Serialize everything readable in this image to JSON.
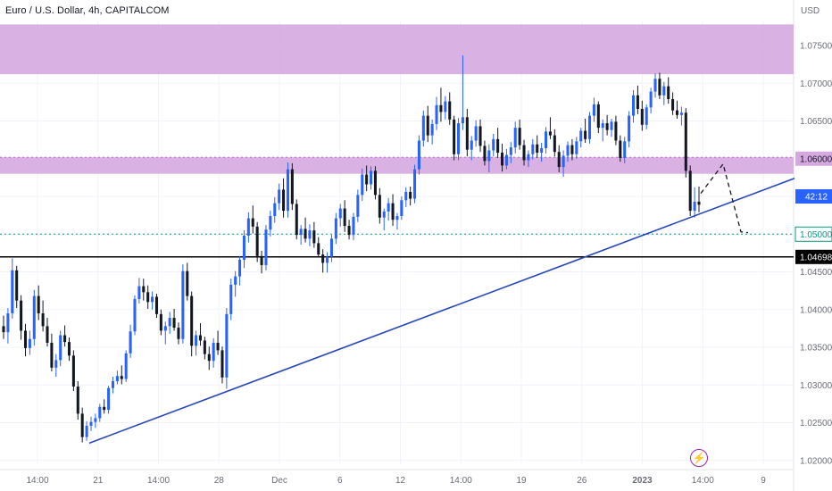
{
  "header": {
    "title": "Euro / U.S. Dollar, 4h, CAPITALCOM"
  },
  "currency_label": "USD",
  "countdown": "42:12",
  "icons": {
    "event": "lightning-icon"
  },
  "colors": {
    "up": "#2962ff",
    "down": "#131722",
    "zone": "#d6a8e0",
    "trendline": "#2946b8",
    "support": "#000000",
    "target": "#089981",
    "grid": "#f0f3fa"
  },
  "chart_data": {
    "type": "candlestick",
    "symbol": "Euro / U.S. Dollar",
    "interval": "4h",
    "source": "CAPITALCOM",
    "ylim": [
      1.0195,
      1.0782
    ],
    "y_ticks": [
      "1.07500",
      "1.07000",
      "1.06500",
      "1.06000",
      "1.05500",
      "1.05000",
      "1.04500",
      "1.04000",
      "1.03500",
      "1.03000",
      "1.02500",
      "1.02000"
    ],
    "x_ticks": [
      "14:00",
      "21",
      "14:00",
      "28",
      "Dec",
      "6",
      "12",
      "14:00",
      "19",
      "26",
      "2023",
      "14:00",
      "9"
    ],
    "zones": [
      {
        "from": 1.0712,
        "to": 1.0778
      },
      {
        "from": 1.058,
        "to": 1.0602
      }
    ],
    "price_labels": [
      {
        "value": 1.06,
        "text": "1.06000",
        "style": "zone"
      },
      {
        "value": 1.055,
        "text": "42:12",
        "style": "blue"
      },
      {
        "value": 1.05,
        "text": "1.05000",
        "style": "green"
      },
      {
        "value": 1.04698,
        "text": "1.04698",
        "style": "black"
      }
    ],
    "trendline": {
      "from": [
        100,
        1.0223
      ],
      "to": [
        890,
        1.0574
      ]
    },
    "projection": [
      [
        785,
        1.0554
      ],
      [
        810,
        1.0593
      ],
      [
        830,
        1.0503
      ],
      [
        838,
        1.0502
      ]
    ],
    "candles": [
      [
        1.0378,
        1.0392,
        1.0361,
        1.037
      ],
      [
        1.037,
        1.0402,
        1.0355,
        1.0395
      ],
      [
        1.0395,
        1.0468,
        1.0388,
        1.0452
      ],
      [
        1.0452,
        1.0458,
        1.0402,
        1.0412
      ],
      [
        1.0412,
        1.0419,
        1.036,
        1.0372
      ],
      [
        1.0372,
        1.0381,
        1.0338,
        1.0349
      ],
      [
        1.0349,
        1.0372,
        1.034,
        1.0361
      ],
      [
        1.0361,
        1.0426,
        1.0352,
        1.0418
      ],
      [
        1.0418,
        1.0432,
        1.0386,
        1.0395
      ],
      [
        1.0395,
        1.0412,
        1.0371,
        1.0378
      ],
      [
        1.0378,
        1.0389,
        1.0351,
        1.0356
      ],
      [
        1.0356,
        1.0368,
        1.0318,
        1.0323
      ],
      [
        1.0323,
        1.0341,
        1.0311,
        1.0333
      ],
      [
        1.0333,
        1.0372,
        1.0325,
        1.0366
      ],
      [
        1.0366,
        1.0379,
        1.0351,
        1.0357
      ],
      [
        1.0357,
        1.0363,
        1.0332,
        1.0339
      ],
      [
        1.0339,
        1.0346,
        1.0292,
        1.0298
      ],
      [
        1.0298,
        1.0305,
        1.0254,
        1.0262
      ],
      [
        1.0262,
        1.027,
        1.0224,
        1.0231
      ],
      [
        1.0231,
        1.0252,
        1.0226,
        1.0246
      ],
      [
        1.0246,
        1.0258,
        1.0239,
        1.0251
      ],
      [
        1.0251,
        1.0262,
        1.0243,
        1.0256
      ],
      [
        1.0256,
        1.0275,
        1.0251,
        1.0271
      ],
      [
        1.0271,
        1.0281,
        1.0262,
        1.0267
      ],
      [
        1.0267,
        1.0299,
        1.0262,
        1.0296
      ],
      [
        1.0296,
        1.0311,
        1.0289,
        1.0305
      ],
      [
        1.0305,
        1.0319,
        1.0301,
        1.0312
      ],
      [
        1.0312,
        1.0326,
        1.0301,
        1.0308
      ],
      [
        1.0308,
        1.0346,
        1.0304,
        1.0342
      ],
      [
        1.0342,
        1.038,
        1.0336,
        1.0371
      ],
      [
        1.0371,
        1.0419,
        1.0366,
        1.0414
      ],
      [
        1.0414,
        1.0442,
        1.0408,
        1.0431
      ],
      [
        1.0431,
        1.0441,
        1.0412,
        1.0423
      ],
      [
        1.0423,
        1.0432,
        1.0401,
        1.041
      ],
      [
        1.041,
        1.0424,
        1.04,
        1.0417
      ],
      [
        1.0417,
        1.0421,
        1.0389,
        1.0394
      ],
      [
        1.0394,
        1.04,
        1.0366,
        1.0372
      ],
      [
        1.0372,
        1.0384,
        1.0354,
        1.0378
      ],
      [
        1.0378,
        1.0397,
        1.0368,
        1.0389
      ],
      [
        1.0389,
        1.0401,
        1.0372,
        1.0376
      ],
      [
        1.0376,
        1.0383,
        1.0354,
        1.0361
      ],
      [
        1.0361,
        1.046,
        1.0355,
        1.0451
      ],
      [
        1.0451,
        1.0462,
        1.0412,
        1.0418
      ],
      [
        1.0418,
        1.0424,
        1.0338,
        1.0352
      ],
      [
        1.0352,
        1.0372,
        1.0339,
        1.0366
      ],
      [
        1.0366,
        1.0382,
        1.0352,
        1.0359
      ],
      [
        1.0359,
        1.0364,
        1.0334,
        1.0341
      ],
      [
        1.0341,
        1.0351,
        1.032,
        1.0332
      ],
      [
        1.0332,
        1.0362,
        1.0323,
        1.0356
      ],
      [
        1.0356,
        1.0372,
        1.034,
        1.0346
      ],
      [
        1.0346,
        1.0351,
        1.0302,
        1.031
      ],
      [
        1.031,
        1.0402,
        1.0295,
        1.0394
      ],
      [
        1.0394,
        1.0441,
        1.0386,
        1.0433
      ],
      [
        1.0433,
        1.0451,
        1.0417,
        1.0444
      ],
      [
        1.0444,
        1.0471,
        1.0432,
        1.0466
      ],
      [
        1.0466,
        1.0505,
        1.0455,
        1.0498
      ],
      [
        1.0498,
        1.0529,
        1.0489,
        1.0521
      ],
      [
        1.0521,
        1.0538,
        1.0501,
        1.051
      ],
      [
        1.051,
        1.0516,
        1.0463,
        1.0471
      ],
      [
        1.0471,
        1.0478,
        1.0448,
        1.0459
      ],
      [
        1.0459,
        1.0512,
        1.0452,
        1.0506
      ],
      [
        1.0506,
        1.0531,
        1.0497,
        1.0524
      ],
      [
        1.0524,
        1.0549,
        1.0515,
        1.0541
      ],
      [
        1.0541,
        1.0567,
        1.0532,
        1.0559
      ],
      [
        1.0559,
        1.0574,
        1.0522,
        1.0531
      ],
      [
        1.0531,
        1.0595,
        1.0522,
        1.0586
      ],
      [
        1.0586,
        1.0594,
        1.0532,
        1.054
      ],
      [
        1.054,
        1.0546,
        1.0493,
        1.0499
      ],
      [
        1.0499,
        1.0512,
        1.0486,
        1.0507
      ],
      [
        1.0507,
        1.0522,
        1.0489,
        1.0494
      ],
      [
        1.0494,
        1.0513,
        1.0484,
        1.0505
      ],
      [
        1.0505,
        1.0516,
        1.0482,
        1.0488
      ],
      [
        1.0488,
        1.0496,
        1.0469,
        1.0473
      ],
      [
        1.0473,
        1.048,
        1.0449,
        1.0462
      ],
      [
        1.0462,
        1.0476,
        1.0449,
        1.047
      ],
      [
        1.047,
        1.0499,
        1.0463,
        1.0494
      ],
      [
        1.0494,
        1.0528,
        1.0487,
        1.0521
      ],
      [
        1.0521,
        1.054,
        1.051,
        1.0534
      ],
      [
        1.0534,
        1.0545,
        1.0503,
        1.0511
      ],
      [
        1.0511,
        1.0519,
        1.0493,
        1.0499
      ],
      [
        1.0499,
        1.0528,
        1.0492,
        1.0523
      ],
      [
        1.0523,
        1.0559,
        1.0516,
        1.0552
      ],
      [
        1.0552,
        1.0587,
        1.0544,
        1.0579
      ],
      [
        1.0579,
        1.0591,
        1.0557,
        1.0566
      ],
      [
        1.0566,
        1.059,
        1.0559,
        1.0584
      ],
      [
        1.0584,
        1.059,
        1.0546,
        1.0552
      ],
      [
        1.0552,
        1.0561,
        1.0514,
        1.0522
      ],
      [
        1.0522,
        1.0534,
        1.0505,
        1.053
      ],
      [
        1.053,
        1.0548,
        1.0518,
        1.0541
      ],
      [
        1.0541,
        1.0553,
        1.0511,
        1.0519
      ],
      [
        1.0519,
        1.0528,
        1.0506,
        1.0524
      ],
      [
        1.0524,
        1.055,
        1.0519,
        1.0545
      ],
      [
        1.0545,
        1.0562,
        1.0536,
        1.0556
      ],
      [
        1.0556,
        1.0563,
        1.0538,
        1.0547
      ],
      [
        1.0547,
        1.0592,
        1.0541,
        1.0586
      ],
      [
        1.0586,
        1.0631,
        1.0579,
        1.0624
      ],
      [
        1.0624,
        1.0664,
        1.0616,
        1.0657
      ],
      [
        1.0657,
        1.067,
        1.0622,
        1.0631
      ],
      [
        1.0631,
        1.0652,
        1.0619,
        1.0646
      ],
      [
        1.0646,
        1.0682,
        1.0638,
        1.0671
      ],
      [
        1.0671,
        1.0694,
        1.0649,
        1.0662
      ],
      [
        1.0662,
        1.0683,
        1.0652,
        1.0676
      ],
      [
        1.0676,
        1.0688,
        1.0645,
        1.0652
      ],
      [
        1.0652,
        1.0657,
        1.0598,
        1.0606
      ],
      [
        1.0606,
        1.0654,
        1.0598,
        1.0647
      ],
      [
        1.0647,
        1.0737,
        1.0638,
        1.0655
      ],
      [
        1.0655,
        1.0666,
        1.0603,
        1.0612
      ],
      [
        1.0612,
        1.063,
        1.0598,
        1.0624
      ],
      [
        1.0624,
        1.0651,
        1.0616,
        1.0643
      ],
      [
        1.0643,
        1.0652,
        1.0609,
        1.0617
      ],
      [
        1.0617,
        1.0624,
        1.0591,
        1.0597
      ],
      [
        1.0597,
        1.0619,
        1.0582,
        1.0611
      ],
      [
        1.0611,
        1.0633,
        1.0603,
        1.0626
      ],
      [
        1.0626,
        1.0641,
        1.0601,
        1.0608
      ],
      [
        1.0608,
        1.062,
        1.0583,
        1.0591
      ],
      [
        1.0591,
        1.0613,
        1.0586,
        1.0605
      ],
      [
        1.0605,
        1.0622,
        1.0594,
        1.0615
      ],
      [
        1.0615,
        1.0649,
        1.0607,
        1.0641
      ],
      [
        1.0641,
        1.0652,
        1.0612,
        1.0618
      ],
      [
        1.0618,
        1.0625,
        1.0591,
        1.0598
      ],
      [
        1.0598,
        1.0611,
        1.0589,
        1.0606
      ],
      [
        1.0606,
        1.0626,
        1.0599,
        1.0619
      ],
      [
        1.0619,
        1.0631,
        1.0601,
        1.0608
      ],
      [
        1.0608,
        1.0621,
        1.0596,
        1.0614
      ],
      [
        1.0614,
        1.0642,
        1.0607,
        1.0636
      ],
      [
        1.0636,
        1.0655,
        1.0626,
        1.0631
      ],
      [
        1.0631,
        1.0639,
        1.0603,
        1.0609
      ],
      [
        1.0609,
        1.0618,
        1.0582,
        1.0589
      ],
      [
        1.0589,
        1.0611,
        1.0576,
        1.0604
      ],
      [
        1.0604,
        1.0623,
        1.0596,
        1.0618
      ],
      [
        1.0618,
        1.0626,
        1.0598,
        1.0606
      ],
      [
        1.0606,
        1.0629,
        1.06,
        1.0623
      ],
      [
        1.0623,
        1.0641,
        1.0615,
        1.0637
      ],
      [
        1.0637,
        1.0653,
        1.0621,
        1.0626
      ],
      [
        1.0626,
        1.0662,
        1.062,
        1.0657
      ],
      [
        1.0657,
        1.0681,
        1.0649,
        1.0672
      ],
      [
        1.0672,
        1.0676,
        1.0634,
        1.0641
      ],
      [
        1.0641,
        1.0652,
        1.0623,
        1.0647
      ],
      [
        1.0647,
        1.0658,
        1.0631,
        1.0638
      ],
      [
        1.0638,
        1.0653,
        1.0629,
        1.0649
      ],
      [
        1.0649,
        1.0657,
        1.0618,
        1.0624
      ],
      [
        1.0624,
        1.0631,
        1.0596,
        1.0601
      ],
      [
        1.0601,
        1.0629,
        1.0594,
        1.0623
      ],
      [
        1.0623,
        1.0663,
        1.0615,
        1.0657
      ],
      [
        1.0657,
        1.0691,
        1.0648,
        1.0684
      ],
      [
        1.0684,
        1.0697,
        1.0659,
        1.0666
      ],
      [
        1.0666,
        1.0677,
        1.0637,
        1.0645
      ],
      [
        1.0645,
        1.0672,
        1.0639,
        1.0668
      ],
      [
        1.0668,
        1.0694,
        1.066,
        1.0689
      ],
      [
        1.0689,
        1.0713,
        1.0681,
        1.0706
      ],
      [
        1.0706,
        1.0714,
        1.0679,
        1.0684
      ],
      [
        1.0684,
        1.0702,
        1.0671,
        1.0696
      ],
      [
        1.0696,
        1.0708,
        1.0673,
        1.0679
      ],
      [
        1.0679,
        1.0688,
        1.0658,
        1.0664
      ],
      [
        1.0664,
        1.0677,
        1.0653,
        1.0658
      ],
      [
        1.0658,
        1.0669,
        1.0644,
        1.0661
      ],
      [
        1.0661,
        1.0667,
        1.0575,
        1.0584
      ],
      [
        1.0584,
        1.0591,
        1.0524,
        1.0531
      ],
      [
        1.0531,
        1.0562,
        1.0522,
        1.0543
      ],
      [
        1.0543,
        1.0563,
        1.0529,
        1.0539
      ]
    ]
  }
}
